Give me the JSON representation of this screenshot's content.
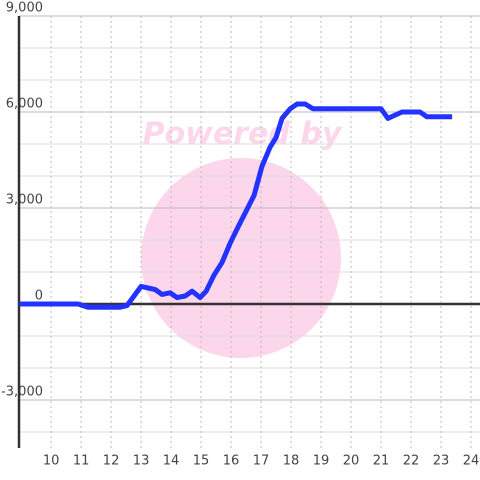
{
  "chart_data": {
    "type": "line",
    "watermark": "Powered by",
    "x": [
      8.93,
      10.9,
      11.23,
      12.3,
      12.53,
      13.0,
      13.47,
      13.7,
      13.97,
      14.2,
      14.47,
      14.7,
      14.97,
      15.17,
      15.43,
      15.7,
      15.97,
      16.23,
      16.5,
      16.77,
      17.03,
      17.3,
      17.5,
      17.7,
      17.97,
      18.2,
      18.47,
      18.73,
      21.0,
      21.23,
      21.7,
      22.3,
      22.53,
      23.37
    ],
    "series": [
      {
        "color": "#2233ff",
        "values": [
          0,
          0,
          -100,
          -100,
          -50,
          550,
          450,
          300,
          350,
          200,
          250,
          400,
          200,
          400,
          900,
          1300,
          1900,
          2400,
          2900,
          3400,
          4300,
          4900,
          5200,
          5800,
          6100,
          6250,
          6250,
          6100,
          6100,
          5800,
          6000,
          6000,
          5850,
          5850
        ]
      }
    ],
    "xlim": [
      8.93,
      24.3
    ],
    "xticks": [
      10,
      11,
      12,
      13,
      14,
      15,
      16,
      17,
      18,
      19,
      20,
      21,
      22,
      23,
      24
    ],
    "ylim": [
      -4500,
      9000
    ],
    "yticks": [
      {
        "value": 9000,
        "label": "9,000"
      },
      {
        "value": 6000,
        "label": "6,000"
      },
      {
        "value": 3000,
        "label": "3,000"
      },
      0,
      {
        "value": -3000,
        "label": "-3,000"
      }
    ],
    "minor_ystep": 1000,
    "grid": true
  }
}
